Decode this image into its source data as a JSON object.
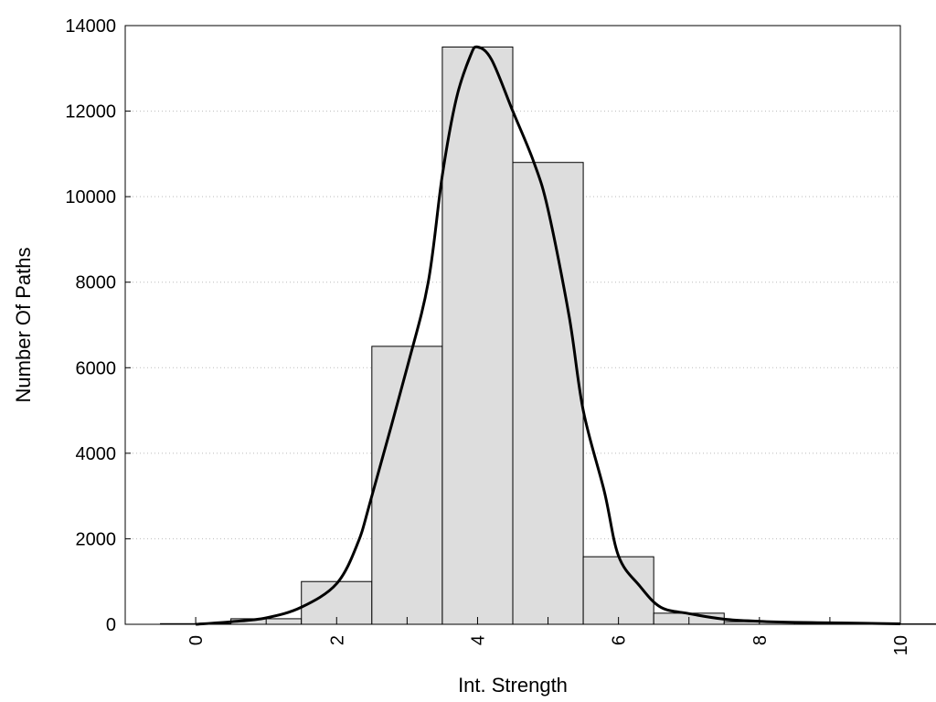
{
  "chart_data": {
    "type": "bar",
    "xlabel": "Int. Strength",
    "ylabel": "Number Of Paths",
    "xlim": [
      -1,
      10
    ],
    "ylim": [
      0,
      14000
    ],
    "xticks": [
      "0",
      "2",
      "4",
      "6",
      "8",
      "10"
    ],
    "yticks": [
      "0",
      "2000",
      "4000",
      "6000",
      "8000",
      "10000",
      "12000",
      "14000"
    ],
    "grid": "horizontal dotted",
    "categories": [
      "0",
      "1",
      "2",
      "3",
      "4",
      "5",
      "6",
      "7",
      "8",
      "9",
      "10"
    ],
    "values": [
      15,
      130,
      1000,
      6500,
      13500,
      10800,
      1580,
      260,
      60,
      30,
      10
    ],
    "bin_width": 1,
    "bar_color": "#dddddd",
    "series": [
      {
        "type": "line",
        "x": [
          0,
          0.5,
          1,
          1.5,
          2,
          2.3,
          2.5,
          3,
          3.3,
          3.5,
          3.7,
          3.9,
          4,
          4.2,
          4.5,
          4.8,
          5,
          5.3,
          5.5,
          5.8,
          6,
          6.3,
          6.6,
          7,
          7.5,
          8,
          8.5,
          9,
          9.5,
          10
        ],
        "y": [
          0,
          60,
          150,
          400,
          950,
          1900,
          3000,
          6000,
          8000,
          10500,
          12300,
          13300,
          13500,
          13200,
          12000,
          10800,
          9700,
          7200,
          5000,
          3100,
          1600,
          900,
          400,
          250,
          120,
          70,
          45,
          35,
          25,
          10
        ]
      }
    ]
  }
}
